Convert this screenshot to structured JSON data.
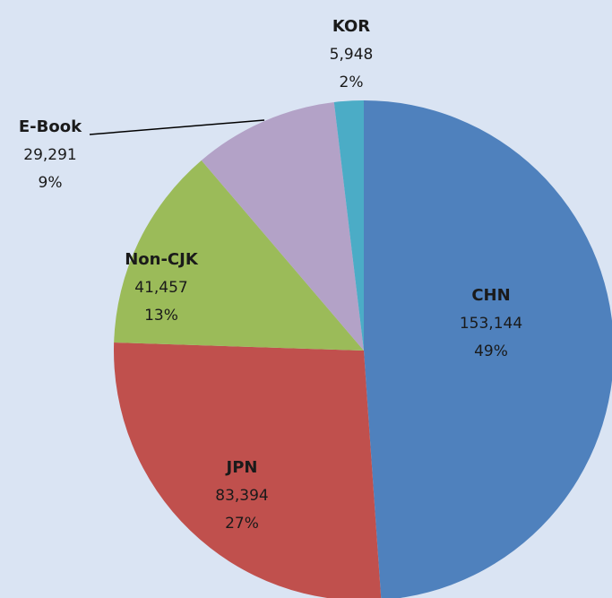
{
  "chart_data": {
    "type": "pie",
    "categories": [
      "CHN",
      "JPN",
      "Non-CJK",
      "E-Book",
      "KOR"
    ],
    "values": [
      153144,
      83394,
      41457,
      29291,
      5948
    ],
    "value_labels": [
      "153,144",
      "83,394",
      "41,457",
      "29,291",
      "5,948"
    ],
    "percents": [
      49,
      27,
      13,
      9,
      2
    ],
    "percent_labels": [
      "49%",
      "27%",
      "13%",
      "9%",
      "2%"
    ],
    "colors": [
      "#4f81bd",
      "#c0504d",
      "#9bbb59",
      "#b3a2c7",
      "#4bacc6"
    ]
  }
}
